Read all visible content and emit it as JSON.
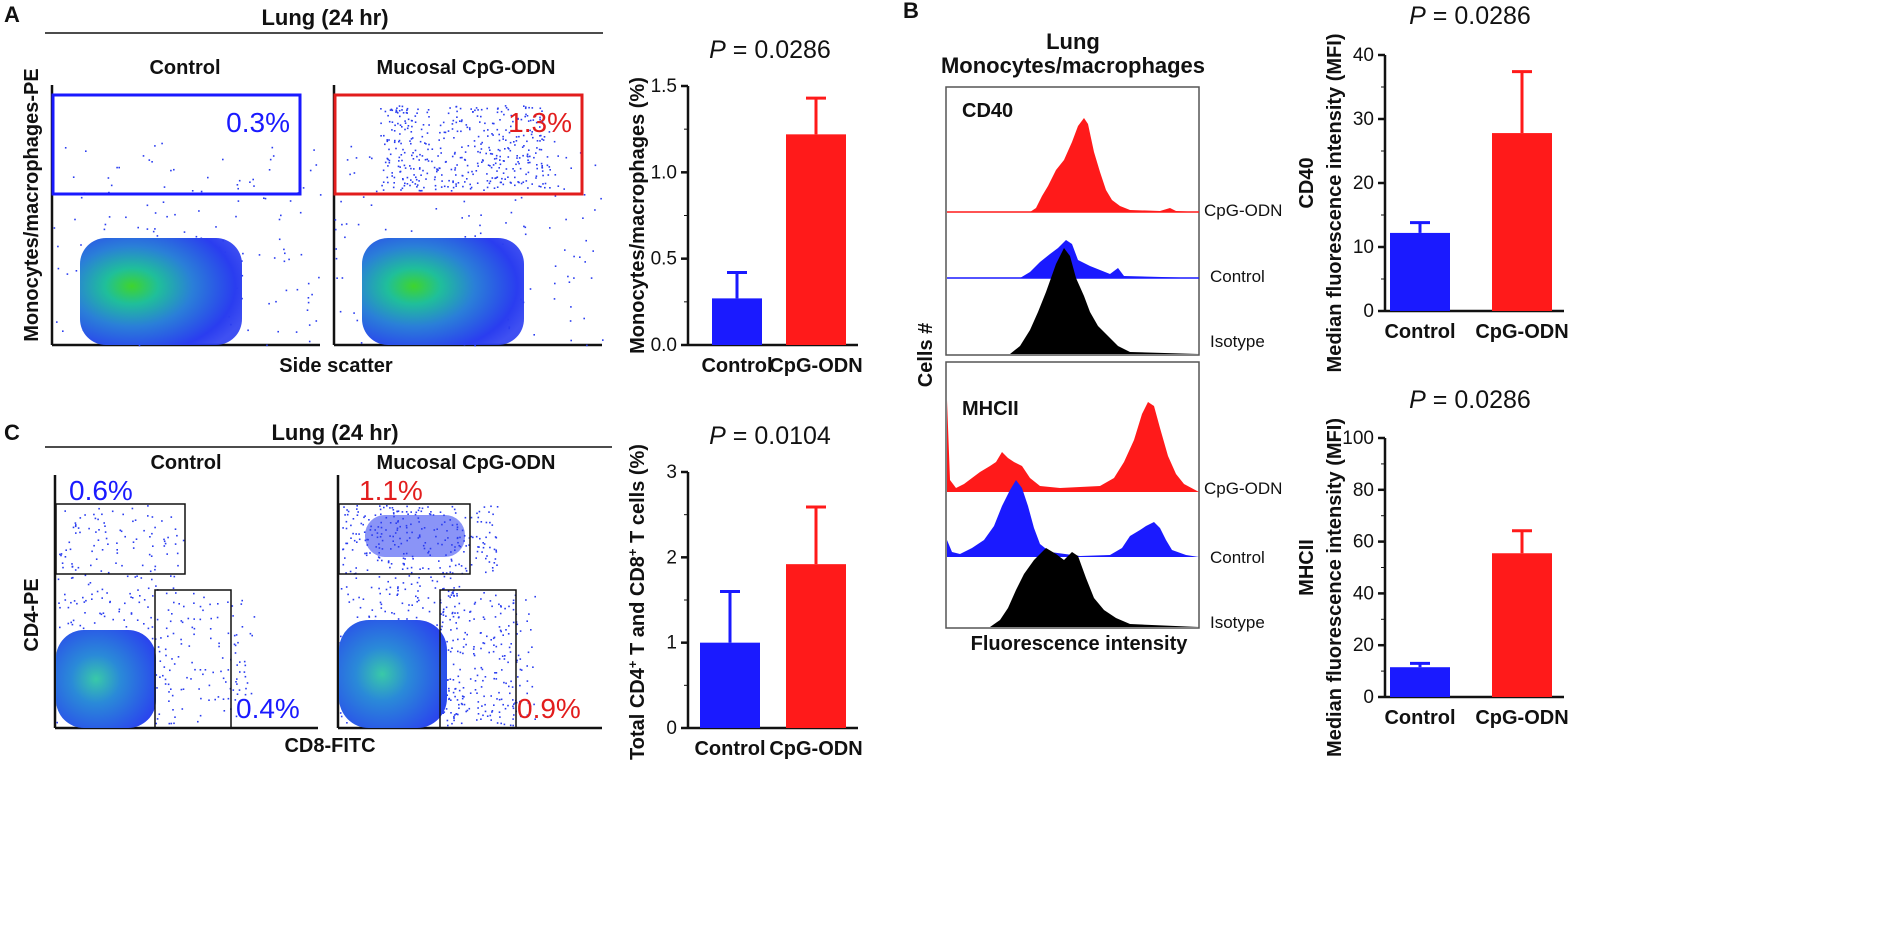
{
  "panels": {
    "a": "A",
    "b": "B",
    "c": "C"
  },
  "panel_a": {
    "header": "Lung (24 hr)",
    "ylabel": "Monocytes/macrophages-PE",
    "xlabel": "Side scatter",
    "plots": [
      {
        "title": "Control",
        "gate_pct": "0.3%",
        "color": "#1a1aff"
      },
      {
        "title": "Mucosal CpG-ODN",
        "gate_pct": "1.3%",
        "color": "#e21d1d"
      }
    ]
  },
  "panel_c": {
    "header": "Lung (24 hr)",
    "ylabel": "CD4-PE",
    "xlabel": "CD8-FITC",
    "plots": [
      {
        "title": "Control",
        "cd4_pct": "0.6%",
        "cd8_pct": "0.4%",
        "color": "#1a1aff"
      },
      {
        "title": "Mucosal CpG-ODN",
        "cd4_pct": "1.1%",
        "cd8_pct": "0.9%",
        "color": "#e21d1d"
      }
    ]
  },
  "panel_b": {
    "title_line1": "Lung",
    "title_line2": "Monocytes/macrophages",
    "ylabel": "Cells #",
    "xlabel": "Fluorescence intensity",
    "markers": [
      "CD40",
      "MHCII"
    ],
    "trace_labels": [
      "CpG-ODN",
      "Control",
      "Isotype"
    ]
  },
  "colors": {
    "control": "#1a1aff",
    "cpg": "#ff1a1a",
    "isotype": "#000000"
  },
  "chart_data": [
    {
      "type": "bar",
      "title": "P = 0.0286",
      "p_label": "P",
      "p_value": "= 0.0286",
      "categories": [
        "Control",
        "CpG-ODN"
      ],
      "values": [
        0.27,
        1.22
      ],
      "errors": [
        0.15,
        0.21
      ],
      "ylabel": "Monocytes/macrophages (%)",
      "ylim": [
        0,
        1.5
      ],
      "yticks": [
        "0.0",
        "0.5",
        "1.0",
        "1.5"
      ]
    },
    {
      "type": "bar",
      "title": "P = 0.0104",
      "p_label": "P",
      "p_value": "= 0.0104",
      "categories": [
        "Control",
        "CpG-ODN"
      ],
      "values": [
        1.0,
        1.92
      ],
      "errors": [
        0.6,
        0.67
      ],
      "ylabel": "Total CD4+ T and CD8+ T cells (%)",
      "ylim": [
        0,
        3
      ],
      "yticks": [
        "0",
        "1",
        "2",
        "3"
      ]
    },
    {
      "type": "bar",
      "title": "P = 0.0286",
      "p_label": "P",
      "p_value": "= 0.0286",
      "categories": [
        "Control",
        "CpG-ODN"
      ],
      "values": [
        12.2,
        27.8
      ],
      "errors": [
        1.6,
        9.6
      ],
      "ylabel": "CD40 Median fluorescence intensity (MFI)",
      "ylabel_marker": "CD40",
      "ylabel_main": "Median fluorescence intensity (MFI)",
      "ylim": [
        0,
        40
      ],
      "yticks": [
        "0",
        "10",
        "20",
        "30",
        "40"
      ]
    },
    {
      "type": "bar",
      "title": "P = 0.0286",
      "p_label": "P",
      "p_value": "= 0.0286",
      "categories": [
        "Control",
        "CpG-ODN"
      ],
      "values": [
        11.5,
        55.5
      ],
      "errors": [
        1.5,
        8.7
      ],
      "ylabel": "MHCII Median fluorescence intensity (MFI)",
      "ylabel_marker": "MHCII",
      "ylabel_main": "Median fluorescence intensity (MFI)",
      "ylim": [
        0,
        100
      ],
      "yticks": [
        "0",
        "20",
        "40",
        "60",
        "80",
        "100"
      ]
    }
  ]
}
